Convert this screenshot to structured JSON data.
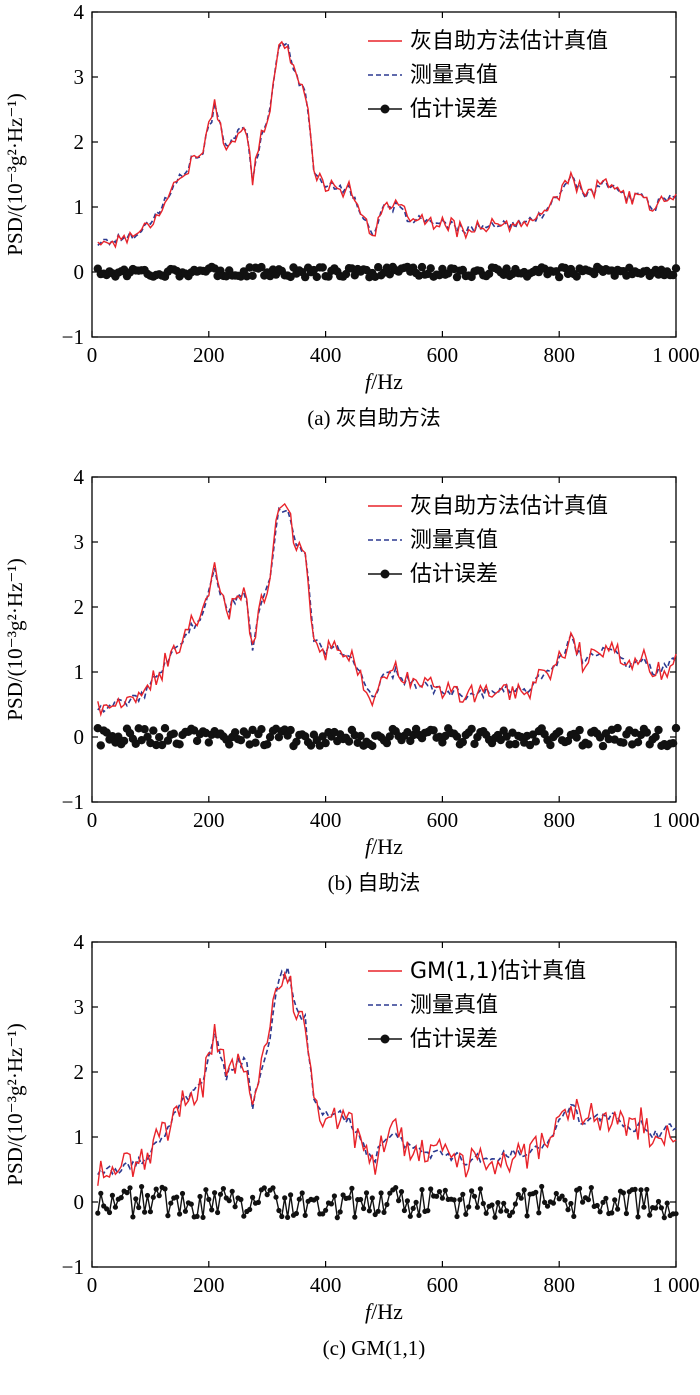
{
  "chart_data": [
    {
      "type": "line",
      "panel": "a",
      "caption": "(a) 灰自助方法",
      "ylabel": "PSD/(10⁻³g²·Hz⁻¹)",
      "xlabel_italic": "f",
      "xlabel_rest": "/Hz",
      "xlim": [
        0,
        1000
      ],
      "ylim": [
        -1,
        4
      ],
      "xticks": [
        0,
        200,
        400,
        600,
        800,
        1000
      ],
      "xtick_labels": [
        "0",
        "200",
        "400",
        "600",
        "800",
        "1 000"
      ],
      "yticks": [
        -1,
        0,
        1,
        2,
        3,
        4
      ],
      "ytick_labels": [
        "−1",
        "0",
        "1",
        "2",
        "3",
        "4"
      ],
      "legend": [
        "灰自助方法估计真值",
        "测量真值",
        "估计误差"
      ],
      "series_colors": [
        "#e8232a",
        "#2b3990",
        "#111111"
      ],
      "error_amplitude": 0.08,
      "error_connected": false
    },
    {
      "type": "line",
      "panel": "b",
      "caption": "(b) 自助法",
      "ylabel": "PSD/(10⁻³g²·Hz⁻¹)",
      "xlabel_italic": "f",
      "xlabel_rest": "/Hz",
      "xlim": [
        0,
        1000
      ],
      "ylim": [
        -1,
        4
      ],
      "xticks": [
        0,
        200,
        400,
        600,
        800,
        1000
      ],
      "xtick_labels": [
        "0",
        "200",
        "400",
        "600",
        "800",
        "1 000"
      ],
      "yticks": [
        -1,
        0,
        1,
        2,
        3,
        4
      ],
      "ytick_labels": [
        "−1",
        "0",
        "1",
        "2",
        "3",
        "4"
      ],
      "legend": [
        "灰自助方法估计真值",
        "测量真值",
        "估计误差"
      ],
      "series_colors": [
        "#e8232a",
        "#2b3990",
        "#111111"
      ],
      "error_amplitude": 0.14,
      "error_connected": false
    },
    {
      "type": "line",
      "panel": "c",
      "caption": "(c) GM(1,1)",
      "ylabel": "PSD/(10⁻³g²·Hz⁻¹)",
      "xlabel_italic": "f",
      "xlabel_rest": "/Hz",
      "xlim": [
        0,
        1000
      ],
      "ylim": [
        -1,
        4
      ],
      "xticks": [
        0,
        200,
        400,
        600,
        800,
        1000
      ],
      "xtick_labels": [
        "0",
        "200",
        "400",
        "600",
        "800",
        "1 000"
      ],
      "yticks": [
        -1,
        0,
        1,
        2,
        3,
        4
      ],
      "ytick_labels": [
        "−1",
        "0",
        "1",
        "2",
        "3",
        "4"
      ],
      "legend": [
        "GM(1,1)估计真值",
        "测量真值",
        "估计误差"
      ],
      "series_colors": [
        "#e8232a",
        "#2b3990",
        "#111111"
      ],
      "error_amplitude": 0.24,
      "error_connected": true
    }
  ],
  "measured_profile": {
    "x": [
      10,
      30,
      50,
      70,
      90,
      110,
      130,
      150,
      170,
      190,
      210,
      230,
      250,
      265,
      275,
      290,
      305,
      320,
      335,
      350,
      365,
      380,
      400,
      420,
      440,
      460,
      480,
      500,
      520,
      540,
      560,
      580,
      600,
      620,
      640,
      660,
      680,
      700,
      720,
      740,
      760,
      780,
      800,
      820,
      840,
      860,
      880,
      900,
      920,
      940,
      960,
      980,
      1000
    ],
    "y": [
      0.45,
      0.48,
      0.52,
      0.58,
      0.68,
      0.9,
      1.15,
      1.45,
      1.7,
      1.85,
      2.55,
      1.95,
      2.15,
      2.15,
      1.4,
      2.1,
      2.5,
      3.45,
      3.55,
      3.0,
      2.8,
      1.55,
      1.35,
      1.35,
      1.25,
      0.95,
      0.6,
      0.95,
      1.0,
      0.85,
      0.8,
      0.75,
      0.72,
      0.7,
      0.65,
      0.7,
      0.68,
      0.7,
      0.75,
      0.7,
      0.85,
      0.95,
      1.2,
      1.5,
      1.2,
      1.25,
      1.35,
      1.3,
      1.1,
      1.2,
      1.0,
      1.1,
      1.2
    ]
  }
}
